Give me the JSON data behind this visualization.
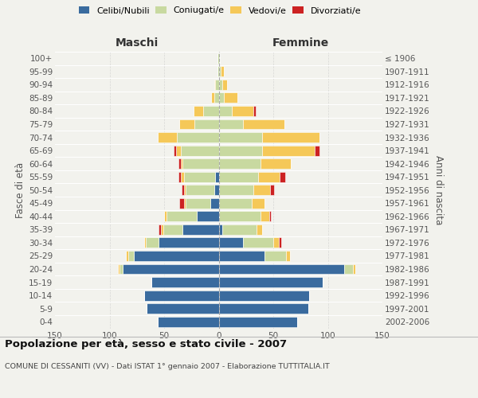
{
  "age_groups": [
    "0-4",
    "5-9",
    "10-14",
    "15-19",
    "20-24",
    "25-29",
    "30-34",
    "35-39",
    "40-44",
    "45-49",
    "50-54",
    "55-59",
    "60-64",
    "65-69",
    "70-74",
    "75-79",
    "80-84",
    "85-89",
    "90-94",
    "95-99",
    "100+"
  ],
  "birth_years": [
    "2002-2006",
    "1997-2001",
    "1992-1996",
    "1987-1991",
    "1982-1986",
    "1977-1981",
    "1972-1976",
    "1967-1971",
    "1962-1966",
    "1957-1961",
    "1952-1956",
    "1947-1951",
    "1942-1946",
    "1937-1941",
    "1932-1936",
    "1927-1931",
    "1922-1926",
    "1917-1921",
    "1912-1916",
    "1907-1911",
    "≤ 1906"
  ],
  "male_celibi": [
    56,
    66,
    68,
    62,
    88,
    78,
    55,
    33,
    20,
    8,
    4,
    3,
    0,
    0,
    0,
    0,
    0,
    0,
    0,
    0,
    0
  ],
  "male_coniugati": [
    0,
    0,
    0,
    0,
    3,
    5,
    12,
    18,
    28,
    22,
    26,
    29,
    33,
    35,
    38,
    22,
    14,
    4,
    3,
    1,
    1
  ],
  "male_vedovi": [
    0,
    0,
    0,
    0,
    1,
    2,
    1,
    2,
    2,
    2,
    2,
    3,
    2,
    4,
    18,
    14,
    9,
    3,
    1,
    0,
    0
  ],
  "male_divorziati": [
    0,
    0,
    0,
    0,
    0,
    0,
    0,
    2,
    0,
    4,
    2,
    2,
    2,
    2,
    0,
    0,
    0,
    0,
    0,
    0,
    0
  ],
  "female_nubili": [
    72,
    82,
    83,
    95,
    115,
    42,
    22,
    3,
    0,
    0,
    0,
    0,
    0,
    0,
    0,
    0,
    0,
    0,
    0,
    0,
    0
  ],
  "female_coniugate": [
    0,
    0,
    0,
    0,
    8,
    20,
    28,
    32,
    38,
    30,
    32,
    36,
    38,
    40,
    40,
    22,
    12,
    5,
    3,
    2,
    1
  ],
  "female_vedove": [
    0,
    0,
    0,
    0,
    2,
    3,
    5,
    5,
    8,
    12,
    15,
    20,
    28,
    48,
    52,
    38,
    20,
    12,
    5,
    3,
    0
  ],
  "female_divorziate": [
    0,
    0,
    0,
    0,
    0,
    0,
    2,
    0,
    2,
    0,
    4,
    5,
    0,
    4,
    0,
    0,
    2,
    0,
    0,
    0,
    0
  ],
  "color_celibi": "#3a6b9e",
  "color_coniugati": "#c8d9a0",
  "color_vedovi": "#f5c858",
  "color_divorziati": "#cc2222",
  "title": "Popolazione per età, sesso e stato civile - 2007",
  "subtitle": "COMUNE DI CESSANITI (VV) - Dati ISTAT 1° gennaio 2007 - Elaborazione TUTTITALIA.IT",
  "label_maschi": "Maschi",
  "label_femmine": "Femmine",
  "label_fasce": "Fasce di età",
  "label_anni": "Anni di nascita",
  "legend_celibi": "Celibi/Nubili",
  "legend_coniugati": "Coniugati/e",
  "legend_vedovi": "Vedovi/e",
  "legend_divorziati": "Divorziati/e",
  "xlim": 150,
  "bg_color": "#f2f2ed"
}
